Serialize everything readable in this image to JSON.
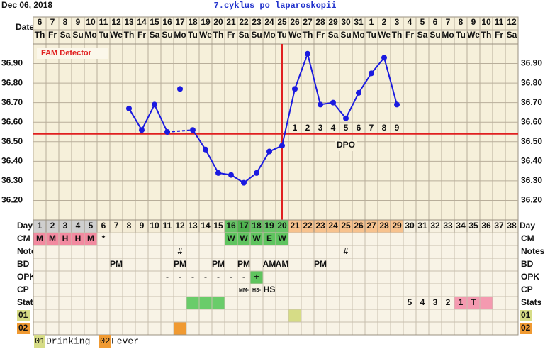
{
  "header": {
    "date": "Dec 06, 2018",
    "date_label": "Date"
  },
  "chart_data": {
    "type": "line",
    "title": "7.cyklus po laparoskopii",
    "subtitle": "FAM Detector",
    "categories": [
      6,
      7,
      8,
      9,
      10,
      11,
      12,
      13,
      14,
      15,
      16,
      17,
      18,
      19,
      20,
      21,
      22,
      23,
      24,
      25,
      26,
      27,
      28,
      29,
      30,
      31,
      1,
      2,
      3,
      4,
      5,
      6,
      7,
      8,
      9,
      10,
      11,
      12
    ],
    "weekdays": [
      "Th",
      "Fr",
      "Sa",
      "Su",
      "Mo",
      "Tu",
      "We",
      "Th",
      "Fr",
      "Sa",
      "Su",
      "Mo",
      "Tu",
      "We",
      "Th",
      "Fr",
      "Sa",
      "Su",
      "Mo",
      "Tu",
      "We",
      "Th",
      "Fr",
      "Sa",
      "Su",
      "Mo",
      "Tu",
      "We",
      "Th",
      "Fr",
      "Sa",
      "Su",
      "Mo",
      "Tu",
      "We",
      "Th",
      "Fr",
      "Sa"
    ],
    "values": [
      null,
      null,
      null,
      null,
      null,
      null,
      null,
      36.67,
      36.56,
      36.69,
      36.55,
      36.77,
      36.56,
      36.46,
      36.34,
      36.33,
      36.29,
      36.34,
      36.45,
      36.48,
      36.77,
      36.95,
      36.69,
      36.7,
      36.62,
      36.75,
      36.85,
      36.93,
      36.69,
      null,
      null,
      null,
      null,
      null,
      null,
      null,
      null,
      null
    ],
    "excluded_days": [
      12
    ],
    "color": "#1a1ae0",
    "ylim": [
      36.1,
      37.0
    ],
    "yticks": [
      {
        "value": 36.2,
        "label": "36.20"
      },
      {
        "value": 36.3,
        "label": "36.30"
      },
      {
        "value": 36.4,
        "label": "36.40"
      },
      {
        "value": 36.5,
        "label": "36.50"
      },
      {
        "value": 36.6,
        "label": "36.60"
      },
      {
        "value": 36.7,
        "label": "36.70"
      },
      {
        "value": 36.8,
        "label": "36.80"
      },
      {
        "value": 36.9,
        "label": "36.90"
      }
    ],
    "grid": true,
    "coverline": 36.54,
    "coverline_color": "#e02020",
    "ovulation_day": 20,
    "dpo_label": "DPO",
    "dpo": {
      "20": 1,
      "21": 2,
      "22": 3,
      "23": 4,
      "24": 5,
      "25": 6,
      "26": 7,
      "27": 8,
      "28": 9
    }
  },
  "table": {
    "day_label": "Day",
    "days": [
      1,
      2,
      3,
      4,
      5,
      6,
      7,
      8,
      9,
      10,
      11,
      12,
      13,
      14,
      15,
      16,
      17,
      18,
      19,
      20,
      21,
      22,
      23,
      24,
      25,
      26,
      27,
      28,
      29,
      30,
      31,
      32,
      33,
      34,
      35,
      36,
      37,
      38
    ],
    "day_colors": [
      "#cfcfcf",
      "#cfcfcf",
      "#cfcfcf",
      "#cfcfcf",
      "#cfcfcf",
      "#f4ecd6",
      "#f4ecd6",
      "#f4ecd6",
      "#f4ecd6",
      "#f4ecd6",
      "#f4ecd6",
      "#f4ecd6",
      "#f4ecd6",
      "#f4ecd6",
      "#f4ecd6",
      "#66c466",
      "#4fb24f",
      "#66c466",
      "#66c466",
      "#66c466",
      "#f7c28e",
      "#f7c28e",
      "#f7c28e",
      "#f7c28e",
      "#f7c28e",
      "#f7c28e",
      "#f7c28e",
      "#f7c28e",
      "#f7c28e",
      "#f6f0e0",
      "#f6f0e0",
      "#f6f0e0",
      "#f6f0e0",
      "#f6f0e0",
      "#f6f0e0",
      "#f6f0e0",
      "#f6f0e0",
      "#f6f0e0"
    ],
    "rows": [
      {
        "label": "CM",
        "cells": {
          "0": "M",
          "1": "M",
          "2": "H",
          "3": "H",
          "4": "M",
          "5": "*",
          "15": "W",
          "16": "W",
          "17": "W",
          "18": "E",
          "19": "W"
        },
        "colors": {
          "0": "#f28aa0",
          "1": "#f28aa0",
          "2": "#f28aa0",
          "3": "#f28aa0",
          "4": "#f28aa0",
          "15": "#5fc45f",
          "16": "#5fc45f",
          "17": "#5fc45f",
          "18": "#5fc45f",
          "19": "#5fc45f"
        }
      },
      {
        "label": "Notes",
        "cells": {
          "11": "#",
          "24": "#"
        },
        "colors": {}
      },
      {
        "label": "BD",
        "cells": {
          "6": "PM",
          "11": "PM",
          "14": "PM",
          "16": "PM",
          "18": "AM",
          "19": "AM",
          "22": "PM"
        },
        "colors": {}
      },
      {
        "label": "OPK",
        "cells": {
          "10": "-",
          "11": "-",
          "12": "-",
          "13": "-",
          "14": "-",
          "15": "-",
          "16": "-",
          "17": "+"
        },
        "colors": {
          "17": "#5fc45f"
        }
      },
      {
        "label": "CP",
        "cells": {
          "16": "MM-",
          "17": "HS-",
          "18": "HS"
        },
        "colors": {}
      },
      {
        "label": "Stats",
        "cells": {
          "29": 5,
          "30": 4,
          "31": 3,
          "32": 2,
          "33": 1,
          "34": "T"
        },
        "colors": {
          "12": "#6acc6a",
          "13": "#6acc6a",
          "14": "#6acc6a",
          "33": "#f49ab0",
          "34": "#f49ab0",
          "35": "#f49ab0"
        }
      },
      {
        "label": "01",
        "label_color": "#d6dc86",
        "cells": {},
        "colors": {
          "20": "#d6dc86"
        }
      },
      {
        "label": "02",
        "label_color": "#f09a32",
        "cells": {},
        "colors": {
          "11": "#f09a32"
        }
      }
    ],
    "legend": [
      {
        "code": "01",
        "label": "Drinking",
        "color": "#d6dc86"
      },
      {
        "code": "02",
        "label": "Fever",
        "color": "#f09a32"
      }
    ]
  }
}
